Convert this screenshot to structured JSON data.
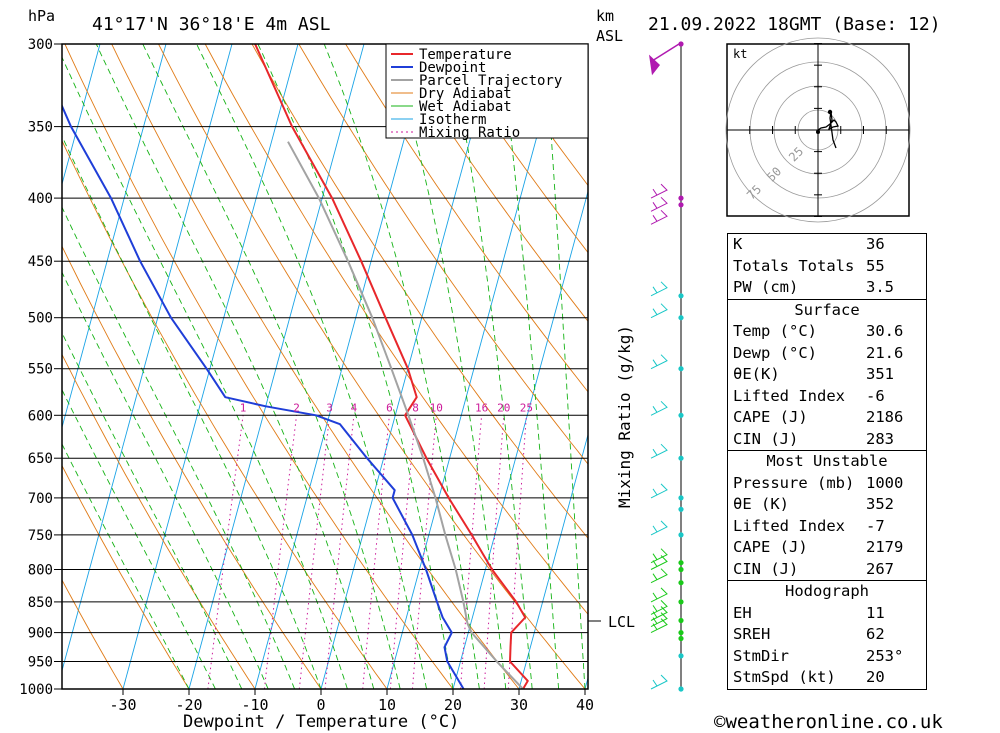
{
  "header": {
    "pressure_unit": "hPa",
    "location": "41°17'N  36°18'E  4m  ASL",
    "km_label": "km",
    "asl_label": "ASL",
    "datetime": "21.09.2022  18GMT  (Base: 12)"
  },
  "chart_data": {
    "type": "line",
    "subtype": "skew-T log-P diagram",
    "xlabel": "Dewpoint / Temperature (°C)",
    "ylabel": "hPa",
    "right_axis_label": "Mixing Ratio (g/kg)",
    "x_ticks": [
      -30,
      -20,
      -10,
      0,
      10,
      20,
      30,
      40
    ],
    "pressure_levels": [
      300,
      350,
      400,
      450,
      500,
      550,
      600,
      650,
      700,
      750,
      800,
      850,
      900,
      950,
      1000
    ],
    "mixing_ratio_labels": [
      "1",
      "2",
      "3",
      "4",
      "6",
      "8",
      "10",
      "16",
      "20",
      "25"
    ],
    "mixing_ratio_values": [
      1,
      2,
      3,
      4,
      6,
      8,
      10,
      16,
      20,
      25
    ],
    "lcl_label": "LCL",
    "lcl_pressure": 885,
    "legend": [
      "Temperature",
      "Dewpoint",
      "Parcel Trajectory",
      "Dry Adiabat",
      "Wet Adiabat",
      "Isotherm",
      "Mixing Ratio"
    ],
    "legend_placement": "top-right",
    "colors": {
      "temperature": "#e8272b",
      "dewpoint": "#1f3ed8",
      "parcel": "#a3a3a3",
      "dry_adiabat": "#e07b17",
      "wet_adiabat": "#16b316",
      "isotherm": "#1aa3e6",
      "mixing_ratio": "#cc1a9a"
    },
    "series": [
      {
        "name": "Temperature",
        "points": [
          [
            1000,
            30.6
          ],
          [
            985,
            31.0
          ],
          [
            950,
            27.5
          ],
          [
            925,
            27.0
          ],
          [
            900,
            26.5
          ],
          [
            875,
            28.0
          ],
          [
            850,
            26.0
          ],
          [
            800,
            21.0
          ],
          [
            750,
            16.5
          ],
          [
            700,
            11.5
          ],
          [
            650,
            6.5
          ],
          [
            600,
            1.5
          ],
          [
            580,
            2.5
          ],
          [
            550,
            0.0
          ],
          [
            500,
            -5.5
          ],
          [
            450,
            -11.5
          ],
          [
            400,
            -18.5
          ],
          [
            350,
            -27.5
          ],
          [
            300,
            -36.5
          ]
        ]
      },
      {
        "name": "Dewpoint",
        "points": [
          [
            1000,
            21.6
          ],
          [
            950,
            18.0
          ],
          [
            925,
            17.0
          ],
          [
            900,
            17.5
          ],
          [
            875,
            15.5
          ],
          [
            850,
            14.0
          ],
          [
            800,
            11.0
          ],
          [
            750,
            7.5
          ],
          [
            700,
            3.0
          ],
          [
            690,
            3.0
          ],
          [
            650,
            -2.5
          ],
          [
            610,
            -8.0
          ],
          [
            600,
            -12.0
          ],
          [
            590,
            -20.0
          ],
          [
            580,
            -26.5
          ],
          [
            550,
            -30.5
          ],
          [
            500,
            -38.0
          ],
          [
            450,
            -45.0
          ],
          [
            400,
            -52.0
          ],
          [
            350,
            -61.0
          ],
          [
            310,
            -68.0
          ],
          [
            300,
            -66.0
          ]
        ]
      },
      {
        "name": "Parcel Trajectory",
        "points": [
          [
            1000,
            30.6
          ],
          [
            950,
            25.5
          ],
          [
            900,
            20.5
          ],
          [
            885,
            19.5
          ],
          [
            850,
            18.0
          ],
          [
            800,
            15.5
          ],
          [
            750,
            12.5
          ],
          [
            700,
            9.5
          ],
          [
            650,
            6.0
          ],
          [
            600,
            2.0
          ],
          [
            550,
            -2.5
          ],
          [
            500,
            -7.5
          ],
          [
            450,
            -13.5
          ],
          [
            400,
            -20.5
          ],
          [
            360,
            -27.5
          ]
        ]
      }
    ]
  },
  "legend_labels": {
    "temperature": "Temperature",
    "dewpoint": "Dewpoint",
    "parcel": "Parcel Trajectory",
    "dry": "Dry Adiabat",
    "wet": "Wet Adiabat",
    "isotherm": "Isotherm",
    "mixing": "Mixing Ratio"
  },
  "hodograph": {
    "unit": "kt",
    "ring_labels": [
      "25",
      "50",
      "75"
    ]
  },
  "indices": {
    "k_label": "K",
    "k_value": "36",
    "tt_label": "Totals Totals",
    "tt_value": "55",
    "pw_label": "PW (cm)",
    "pw_value": "3.5"
  },
  "surface": {
    "title": "Surface",
    "temp_label": "Temp (°C)",
    "temp_value": "30.6",
    "dewp_label": "Dewp (°C)",
    "dewp_value": "21.6",
    "theta_label": "θE(K)",
    "theta_value": "351",
    "li_label": "Lifted Index",
    "li_value": "-6",
    "cape_label": "CAPE (J)",
    "cape_value": "2186",
    "cin_label": "CIN (J)",
    "cin_value": "283"
  },
  "most_unstable": {
    "title": "Most Unstable",
    "pres_label": "Pressure (mb)",
    "pres_value": "1000",
    "theta_label": "θE (K)",
    "theta_value": "352",
    "li_label": "Lifted Index",
    "li_value": "-7",
    "cape_label": "CAPE (J)",
    "cape_value": "2179",
    "cin_label": "CIN (J)",
    "cin_value": "267"
  },
  "hodo_params": {
    "title": "Hodograph",
    "eh_label": "EH",
    "eh_value": "11",
    "sreh_label": "SREH",
    "sreh_value": "62",
    "stmdir_label": "StmDir",
    "stmdir_value": "253°",
    "stmspd_label": "StmSpd (kt)",
    "stmspd_value": "20"
  },
  "footer": {
    "copyright": "©weatheronline.co.uk"
  }
}
